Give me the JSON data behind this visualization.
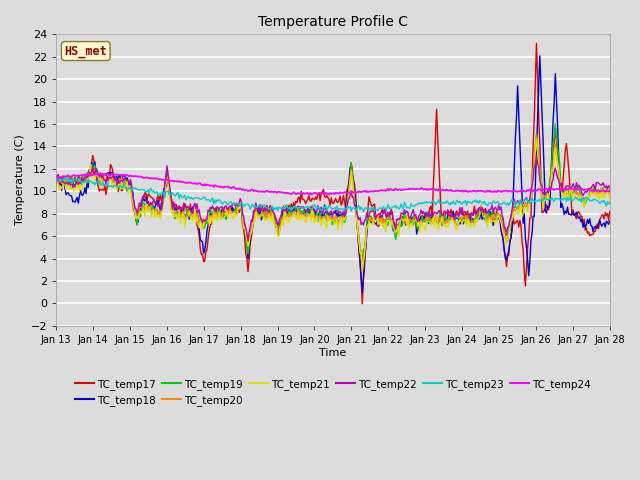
{
  "title": "Temperature Profile C",
  "xlabel": "Time",
  "ylabel": "Temperature (C)",
  "ylim": [
    -2,
    24
  ],
  "yticks": [
    -2,
    0,
    2,
    4,
    6,
    8,
    10,
    12,
    14,
    16,
    18,
    20,
    22,
    24
  ],
  "x_labels": [
    "Jan 13",
    "Jan 14",
    "Jan 15",
    "Jan 16",
    "Jan 17",
    "Jan 18",
    "Jan 19",
    "Jan 20",
    "Jan 21",
    "Jan 22",
    "Jan 23",
    "Jan 24",
    "Jan 25",
    "Jan 26",
    "Jan 27",
    "Jan 28"
  ],
  "annotation": "HS_met",
  "annotation_color": "#8B0000",
  "annotation_bg": "#FFFACD",
  "annotation_edge": "#8B7536",
  "bg_color": "#DCDCDC",
  "grid_color": "#FFFFFF",
  "series_colors": {
    "TC_temp17": "#DD0000",
    "TC_temp18": "#0000CC",
    "TC_temp19": "#00CC00",
    "TC_temp20": "#FF8800",
    "TC_temp21": "#DDDD00",
    "TC_temp22": "#BB00BB",
    "TC_temp23": "#00CCCC",
    "TC_temp24": "#FF00FF"
  },
  "legend_order": [
    "TC_temp17",
    "TC_temp18",
    "TC_temp19",
    "TC_temp20",
    "TC_temp21",
    "TC_temp22",
    "TC_temp23",
    "TC_temp24"
  ]
}
